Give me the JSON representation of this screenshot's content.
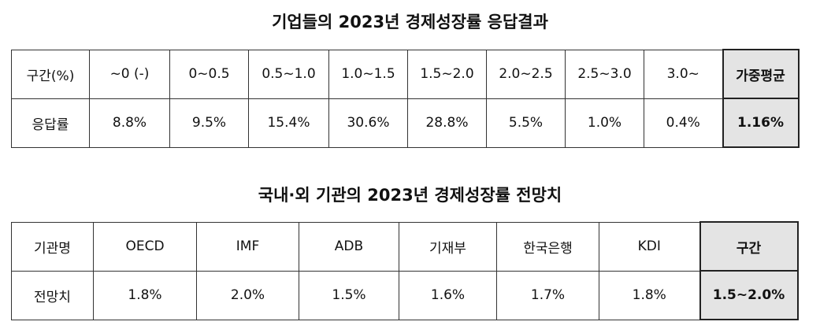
{
  "tables": [
    {
      "title": "기업들의 2023년 경제성장률 응답결과",
      "header": [
        "구간(%)",
        "~0 (-)",
        "0~0.5",
        "0.5~1.0",
        "1.0~1.5",
        "1.5~2.0",
        "2.0~2.5",
        "2.5~3.0",
        "3.0~",
        "가중평균"
      ],
      "row": [
        "응답률",
        "8.8%",
        "9.5%",
        "15.4%",
        "30.6%",
        "28.8%",
        "5.5%",
        "1.0%",
        "0.4%",
        "1.16%"
      ]
    },
    {
      "title": "국내·외 기관의 2023년 경제성장률 전망치",
      "header": [
        "기관명",
        "OECD",
        "IMF",
        "ADB",
        "기재부",
        "한국은행",
        "KDI",
        "구간"
      ],
      "row": [
        "전망치",
        "1.8%",
        "2.0%",
        "1.5%",
        "1.6%",
        "1.7%",
        "1.8%",
        "1.5~2.0%"
      ]
    }
  ]
}
